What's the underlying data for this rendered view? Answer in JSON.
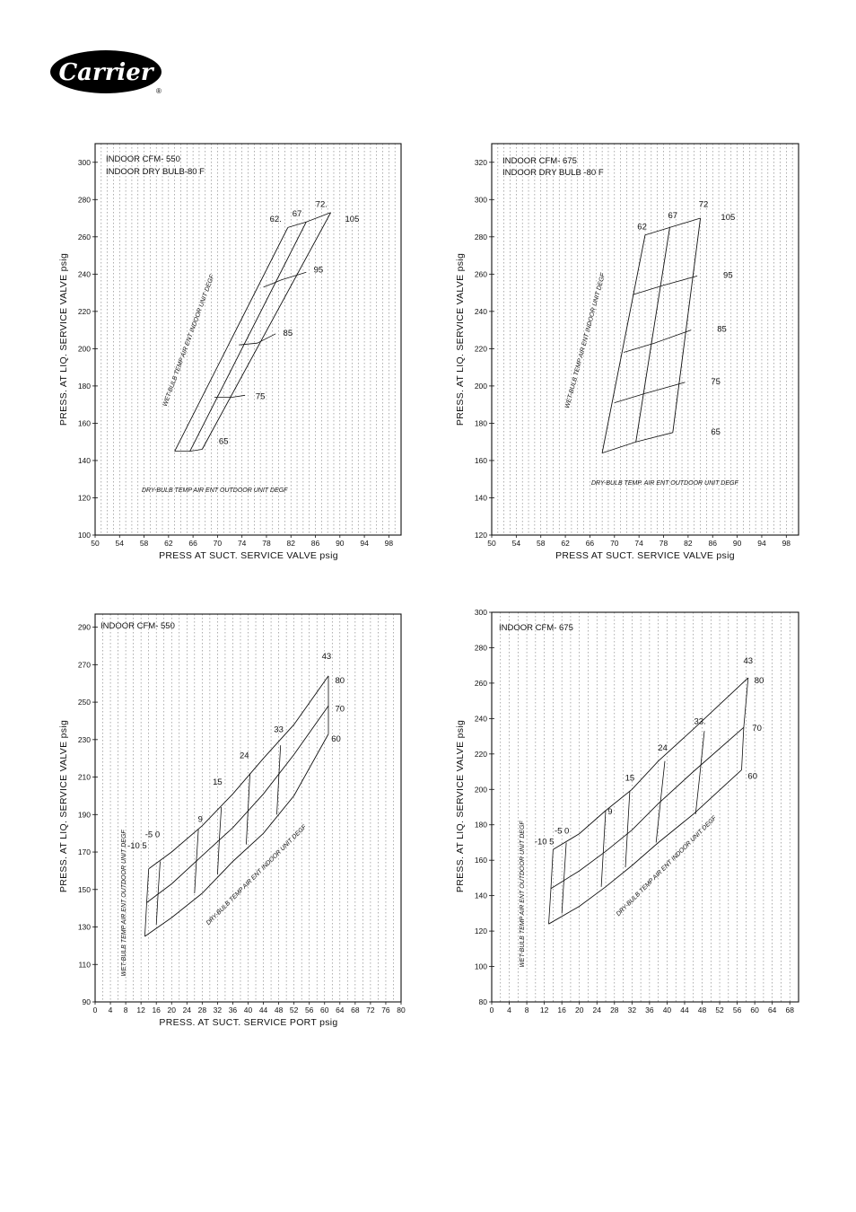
{
  "brand": {
    "name": "Carrier",
    "registered": "®"
  },
  "chart_data": [
    {
      "type": "line",
      "title": "INDOOR CFM- 550",
      "subtitle": "INDOOR DRY BULB-80 F",
      "xlabel": "PRESS  AT SUCT. SERVICE VALVE psig",
      "ylabel": "PRESS. AT LIQ. SERVICE VALVE psig",
      "xlim": [
        50,
        100
      ],
      "ylim": [
        100,
        310
      ],
      "xticks": [
        50,
        54,
        58,
        62,
        66,
        70,
        74,
        78,
        82,
        86,
        90,
        94,
        98
      ],
      "yticks": [
        100,
        120,
        140,
        160,
        180,
        200,
        220,
        240,
        260,
        280,
        300
      ],
      "family1_label": "WET-BULB TEMP AIR ENT INDOOR UNIT DEGF",
      "family2_label": "DRY-BULB TEMP  AIR ENT OUTDOOR UNIT DEGF",
      "series": [
        {
          "name": "62",
          "x": [
            63,
            81.5
          ],
          "y": [
            145,
            265
          ]
        },
        {
          "name": "67",
          "x": [
            65.5,
            84.5
          ],
          "y": [
            145,
            268
          ]
        },
        {
          "name": "72",
          "x": [
            67.5,
            88.5
          ],
          "y": [
            146,
            273
          ]
        }
      ],
      "curves": [
        {
          "name": "65",
          "points": [
            [
              63,
              145
            ],
            [
              65.5,
              145
            ],
            [
              67.5,
              146
            ]
          ]
        },
        {
          "name": "75",
          "points": [
            [
              69.5,
              174
            ],
            [
              72.5,
              174
            ],
            [
              74.5,
              175
            ]
          ]
        },
        {
          "name": "85",
          "points": [
            [
              73.5,
              202
            ],
            [
              76.5,
              203
            ],
            [
              79.5,
              208
            ]
          ]
        },
        {
          "name": "95",
          "points": [
            [
              77.5,
              233
            ],
            [
              80.5,
              237
            ],
            [
              84.5,
              241
            ]
          ]
        },
        {
          "name": "105",
          "points": [
            [
              81.5,
              265
            ],
            [
              84.5,
              268
            ],
            [
              88.5,
              273
            ]
          ]
        }
      ],
      "point_labels": [
        {
          "text": "62.",
          "x": 79.5,
          "y": 268
        },
        {
          "text": "67",
          "x": 83,
          "y": 271
        },
        {
          "text": "72.",
          "x": 87,
          "y": 276
        },
        {
          "text": "105",
          "x": 92,
          "y": 268
        },
        {
          "text": "95",
          "x": 86.5,
          "y": 241
        },
        {
          "text": "85",
          "x": 81.5,
          "y": 207
        },
        {
          "text": "75",
          "x": 77,
          "y": 173
        },
        {
          "text": "65",
          "x": 71,
          "y": 149
        }
      ]
    },
    {
      "type": "line",
      "title": "INDOOR CFM- 675",
      "subtitle": "INDOOR DRY BULB -80 F",
      "xlabel": "PRESS  AT SUCT. SERVICE VALVE psig",
      "ylabel": "PRESS. AT LIQ. SERVICE VALVE psig",
      "xlim": [
        50,
        100
      ],
      "ylim": [
        120,
        330
      ],
      "xticks": [
        50,
        54,
        58,
        62,
        66,
        70,
        74,
        78,
        82,
        86,
        90,
        94,
        98
      ],
      "yticks": [
        120,
        140,
        160,
        180,
        200,
        220,
        240,
        260,
        280,
        300,
        320
      ],
      "family1_label": "WET-BULB TEMP AIR ENT INDOOR UNIT DEGF",
      "family2_label": "DRY-BULB TEMP. AIR ENT OUTDOOR UNIT DEGF",
      "series": [
        {
          "name": "62",
          "x": [
            68,
            75
          ],
          "y": [
            164,
            281
          ]
        },
        {
          "name": "67",
          "x": [
            73.5,
            79
          ],
          "y": [
            170,
            285
          ]
        },
        {
          "name": "72",
          "x": [
            79.5,
            84
          ],
          "y": [
            175,
            290
          ]
        }
      ],
      "curves": [
        {
          "name": "65",
          "points": [
            [
              68,
              164
            ],
            [
              73.5,
              170
            ],
            [
              79.5,
              175
            ]
          ]
        },
        {
          "name": "75",
          "points": [
            [
              70,
              191
            ],
            [
              75,
              196
            ],
            [
              81.5,
              202
            ]
          ]
        },
        {
          "name": "85",
          "points": [
            [
              71.5,
              218
            ],
            [
              76.5,
              223
            ],
            [
              82.5,
              230
            ]
          ]
        },
        {
          "name": "95",
          "points": [
            [
              73,
              249
            ],
            [
              78,
              254
            ],
            [
              83.5,
              259
            ]
          ]
        },
        {
          "name": "105",
          "points": [
            [
              75,
              281
            ],
            [
              79,
              285
            ],
            [
              84,
              290
            ]
          ]
        }
      ],
      "point_labels": [
        {
          "text": "62",
          "x": 74.5,
          "y": 284
        },
        {
          "text": "67",
          "x": 79.5,
          "y": 290
        },
        {
          "text": "72",
          "x": 84.5,
          "y": 296
        },
        {
          "text": "105",
          "x": 88.5,
          "y": 289
        },
        {
          "text": "95",
          "x": 88.5,
          "y": 258
        },
        {
          "text": "85",
          "x": 87.5,
          "y": 229
        },
        {
          "text": "75",
          "x": 86.5,
          "y": 201
        },
        {
          "text": "65",
          "x": 86.5,
          "y": 174
        }
      ]
    },
    {
      "type": "line",
      "title": "INDOOR CFM- 550",
      "subtitle": "",
      "xlabel": "PRESS. AT SUCT. SERVICE PORT psig",
      "ylabel": "PRESS. AT LIQ. SERVICE VALVE psig",
      "xlim": [
        0,
        80
      ],
      "ylim": [
        90,
        297
      ],
      "xticks": [
        0,
        4,
        8,
        12,
        16,
        20,
        24,
        28,
        32,
        36,
        40,
        44,
        48,
        52,
        56,
        60,
        64,
        68,
        72,
        76,
        80
      ],
      "yticks": [
        90,
        110,
        130,
        150,
        170,
        190,
        210,
        230,
        250,
        270,
        290
      ],
      "family1_label": "WET-BULB TEMP AIR ENT OUTDOOR UNIT DEGF",
      "family2_label": "DRY-BULB TEMP AIR ENT INDOOR UNIT DEGF",
      "series": [
        {
          "name": "80",
          "points": [
            [
              14,
              161
            ],
            [
              20,
              170
            ],
            [
              28,
              184
            ],
            [
              36,
              201
            ],
            [
              44,
              220
            ],
            [
              52,
              238
            ],
            [
              61,
              264
            ]
          ]
        },
        {
          "name": "70",
          "points": [
            [
              13.5,
              143
            ],
            [
              20,
              153
            ],
            [
              28,
              168
            ],
            [
              36,
              183
            ],
            [
              44,
              201
            ],
            [
              52,
              222
            ],
            [
              61,
              248
            ]
          ]
        },
        {
          "name": "60",
          "points": [
            [
              13,
              125
            ],
            [
              20,
              135
            ],
            [
              28,
              148
            ],
            [
              36,
              165
            ],
            [
              44,
              180
            ],
            [
              52,
              200
            ],
            [
              61,
              233
            ]
          ]
        }
      ],
      "curves": [
        {
          "name": "-10",
          "points": [
            [
              14,
              161
            ],
            [
              13.5,
              143
            ],
            [
              13,
              125
            ]
          ]
        },
        {
          "name": "5",
          "points": [
            [
              17,
              165
            ],
            [
              16.5,
              149
            ],
            [
              16,
              131
            ]
          ]
        },
        {
          "name": "9",
          "points": [
            [
              27,
              182
            ],
            [
              26.5,
              166
            ],
            [
              26,
              148
            ]
          ]
        },
        {
          "name": "15",
          "points": [
            [
              33,
              194
            ],
            [
              32.5,
              177
            ],
            [
              32,
              158
            ]
          ]
        },
        {
          "name": "24",
          "points": [
            [
              40.5,
              212
            ],
            [
              40,
              193
            ],
            [
              39.5,
              174
            ]
          ]
        },
        {
          "name": "33",
          "points": [
            [
              48.5,
              227
            ],
            [
              48,
              209
            ],
            [
              47.5,
              190
            ]
          ]
        },
        {
          "name": "43",
          "points": [
            [
              61,
              264
            ],
            [
              61,
              248
            ],
            [
              61,
              233
            ]
          ]
        }
      ],
      "point_labels": [
        {
          "text": "43",
          "x": 60.5,
          "y": 273
        },
        {
          "text": "80",
          "x": 64,
          "y": 260
        },
        {
          "text": "70",
          "x": 64,
          "y": 245
        },
        {
          "text": "60",
          "x": 63,
          "y": 229
        },
        {
          "text": "33",
          "x": 48,
          "y": 234
        },
        {
          "text": "24",
          "x": 39,
          "y": 220
        },
        {
          "text": "15",
          "x": 32,
          "y": 206
        },
        {
          "text": "9",
          "x": 27.5,
          "y": 186
        },
        {
          "text": "-5 0",
          "x": 15,
          "y": 178
        },
        {
          "text": "-10 5",
          "x": 11,
          "y": 172
        }
      ]
    },
    {
      "type": "line",
      "title": "INDOOR CFM- 675",
      "subtitle": "",
      "xlabel": "",
      "ylabel": "PRESS. AT LIQ. SERVICE VALVE psig",
      "xlim": [
        0,
        70
      ],
      "ylim": [
        80,
        300
      ],
      "xticks": [
        0,
        4,
        8,
        12,
        16,
        20,
        24,
        28,
        32,
        36,
        40,
        44,
        48,
        52,
        56,
        60,
        64,
        68
      ],
      "yticks": [
        80,
        100,
        120,
        140,
        160,
        180,
        200,
        220,
        240,
        260,
        280,
        300
      ],
      "family1_label": "WET-BULB TEMP AIR ENT OUTDOOR UNIT DEGF",
      "family2_label": "DRY-BULB TEMP AIR ENT INDOOR UNIT DEGF",
      "series": [
        {
          "name": "80",
          "points": [
            [
              14,
              166
            ],
            [
              20,
              175
            ],
            [
              26,
              188
            ],
            [
              32,
              200
            ],
            [
              38,
              216
            ],
            [
              46,
              234
            ],
            [
              58.5,
              263
            ]
          ]
        },
        {
          "name": "70",
          "points": [
            [
              13.5,
              144
            ],
            [
              20,
              154
            ],
            [
              26,
              165
            ],
            [
              32,
              177
            ],
            [
              38,
              192
            ],
            [
              46,
              210
            ],
            [
              57.5,
              235
            ]
          ]
        },
        {
          "name": "60",
          "points": [
            [
              13,
              124
            ],
            [
              20,
              134
            ],
            [
              26,
              145
            ],
            [
              32,
              157
            ],
            [
              38,
              170
            ],
            [
              46,
              186
            ],
            [
              57,
              211
            ]
          ]
        }
      ],
      "curves": [
        {
          "name": "-10",
          "points": [
            [
              14,
              166
            ],
            [
              13.5,
              144
            ],
            [
              13,
              124
            ]
          ]
        },
        {
          "name": "5",
          "points": [
            [
              17,
              170
            ],
            [
              16.5,
              150
            ],
            [
              16,
              130
            ]
          ]
        },
        {
          "name": "9",
          "points": [
            [
              26,
              188
            ],
            [
              25.5,
              167
            ],
            [
              25,
              145
            ]
          ]
        },
        {
          "name": "15",
          "points": [
            [
              31.5,
              199
            ],
            [
              31,
              178
            ],
            [
              30.5,
              156
            ]
          ]
        },
        {
          "name": "24",
          "points": [
            [
              39.5,
              216
            ],
            [
              38.5,
              193
            ],
            [
              37.5,
              170
            ]
          ]
        },
        {
          "name": "33",
          "points": [
            [
              48.5,
              233
            ],
            [
              47.5,
              209
            ],
            [
              46.5,
              186
            ]
          ]
        },
        {
          "name": "43",
          "points": [
            [
              58.5,
              263
            ],
            [
              57.5,
              235
            ],
            [
              57,
              211
            ]
          ]
        }
      ],
      "point_labels": [
        {
          "text": "43",
          "x": 58.5,
          "y": 271
        },
        {
          "text": "80",
          "x": 61,
          "y": 260
        },
        {
          "text": "70",
          "x": 60.5,
          "y": 233
        },
        {
          "text": "60",
          "x": 59.5,
          "y": 206
        },
        {
          "text": "33.",
          "x": 47.5,
          "y": 237
        },
        {
          "text": "24",
          "x": 39,
          "y": 222
        },
        {
          "text": "15",
          "x": 31.5,
          "y": 205
        },
        {
          "text": "9",
          "x": 27,
          "y": 186
        },
        {
          "text": "-5 0",
          "x": 16,
          "y": 175
        },
        {
          "text": "-10 5",
          "x": 12,
          "y": 169
        }
      ]
    }
  ]
}
